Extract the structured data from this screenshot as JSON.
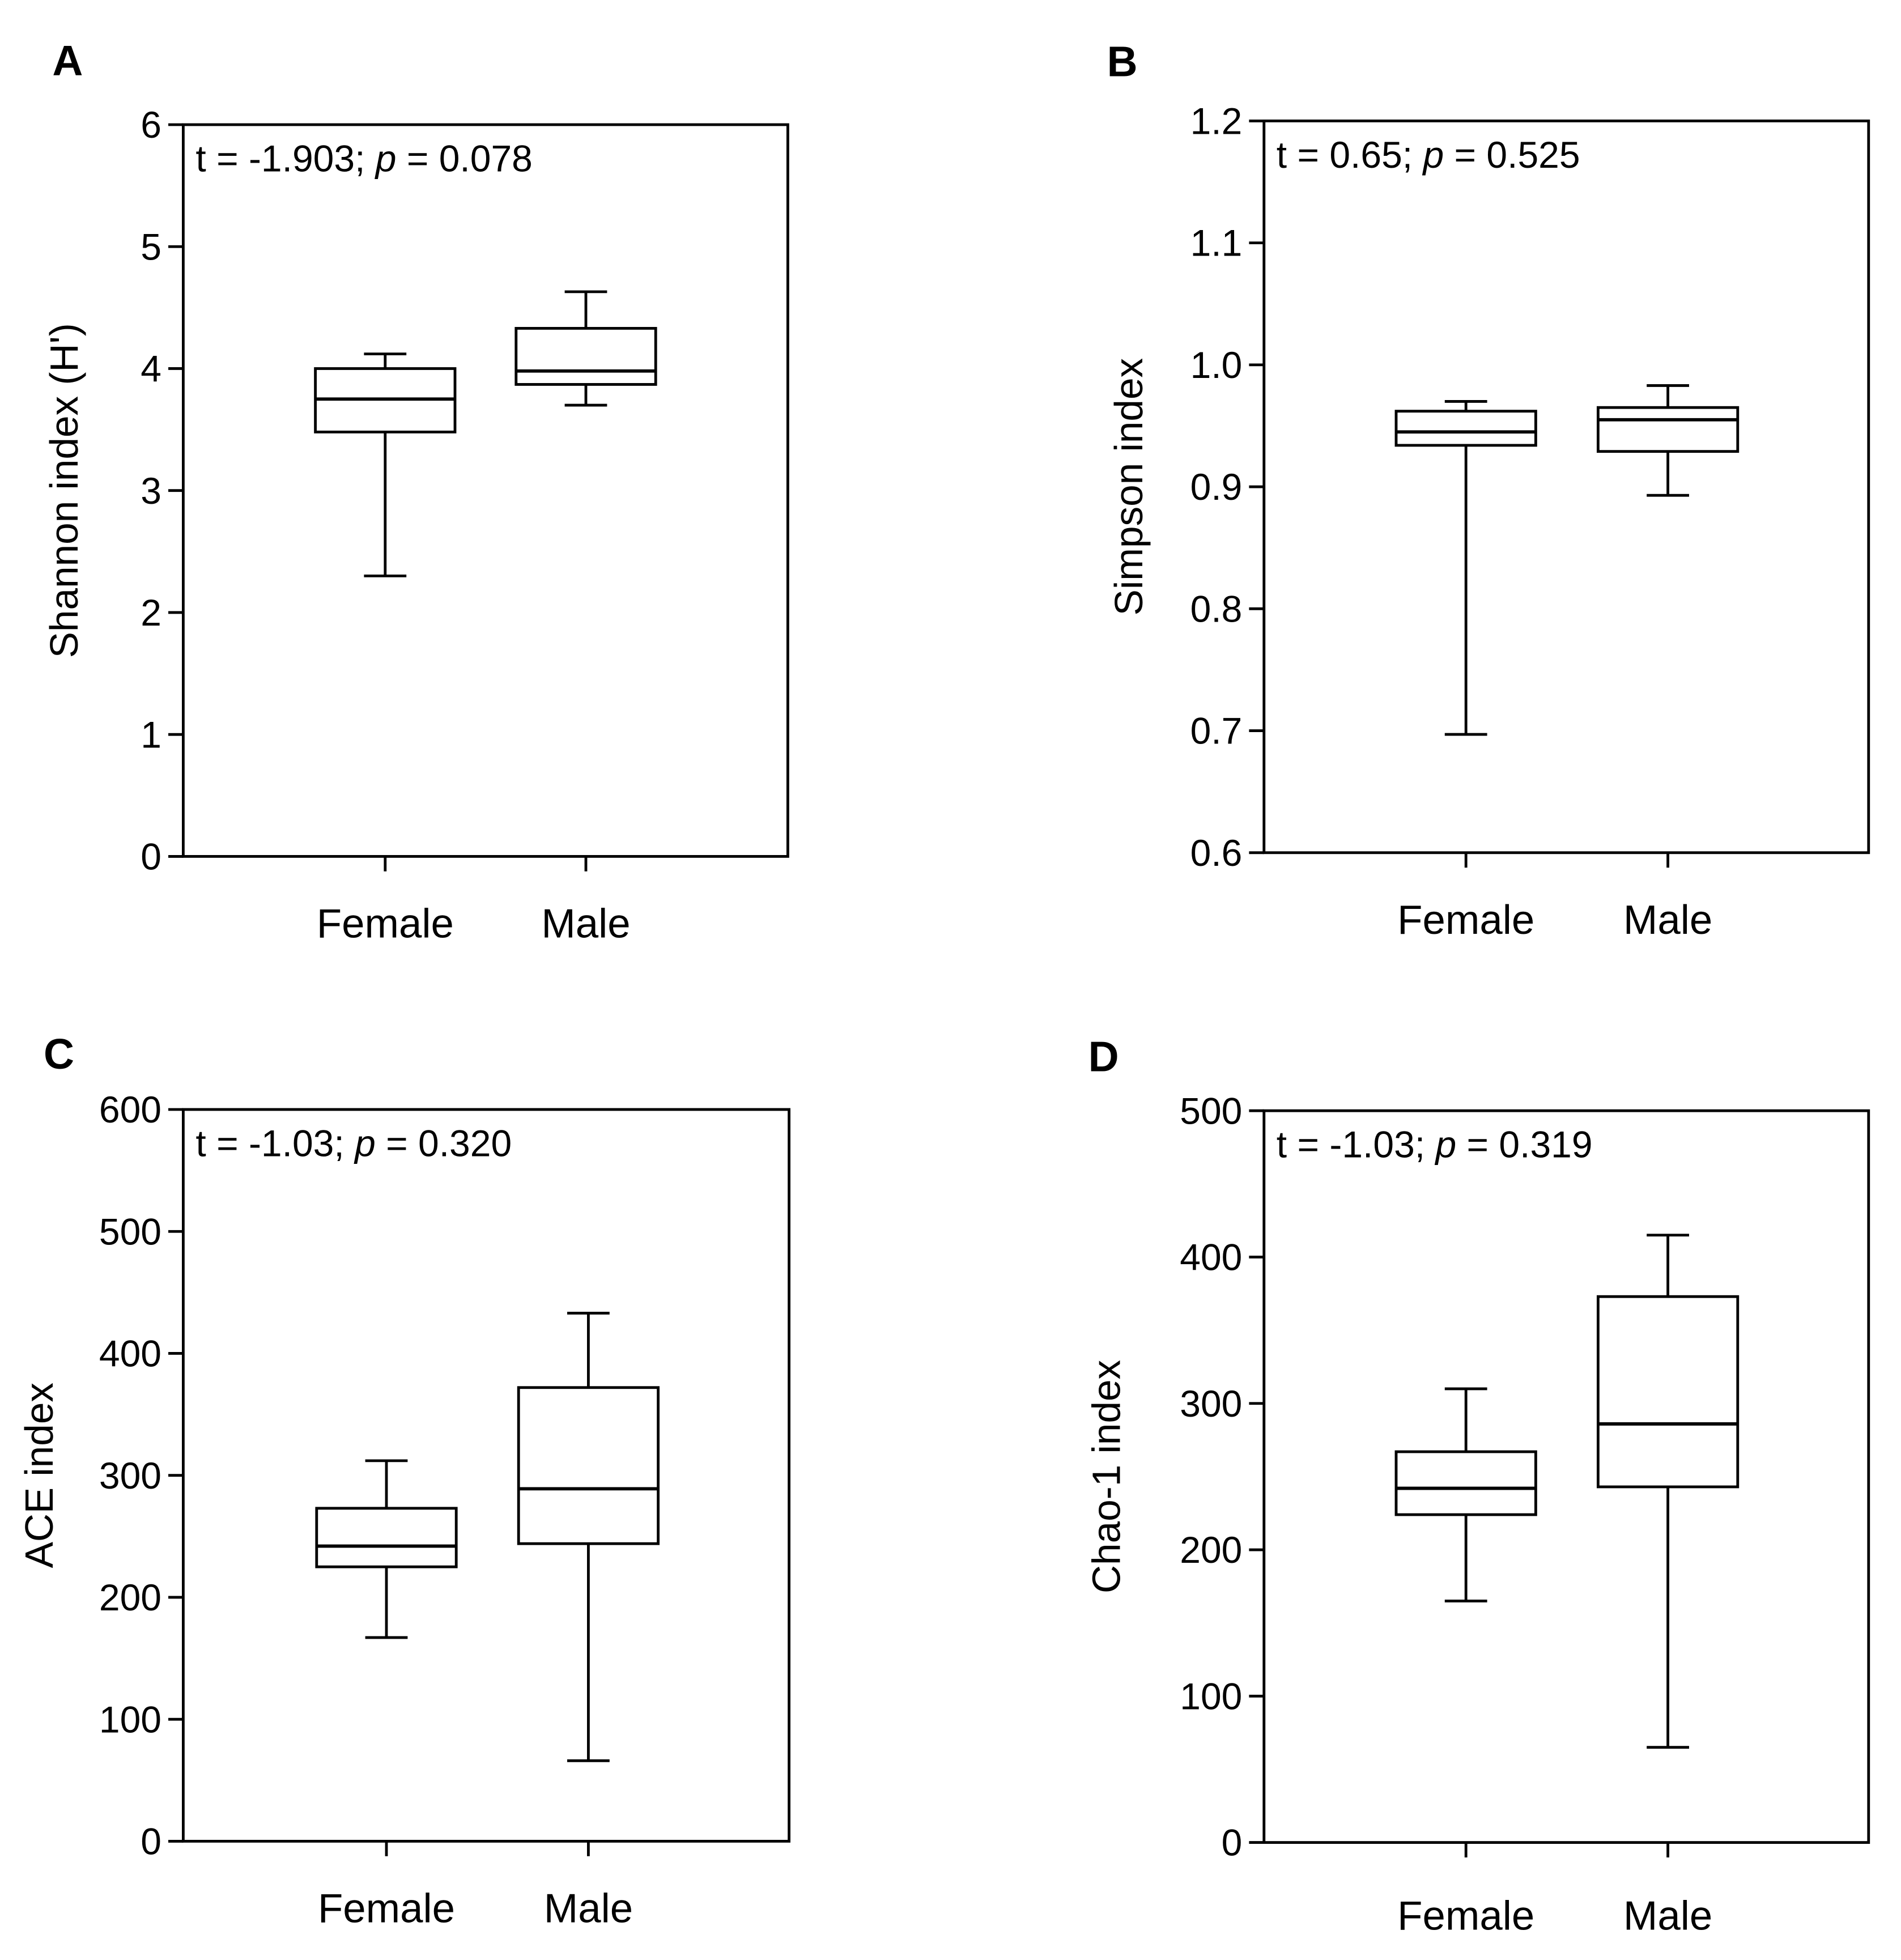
{
  "figure": {
    "colors": {
      "ink": "#000000",
      "background": "#ffffff",
      "box_fill": "#ffffff"
    }
  },
  "chart_data": [
    {
      "panel": "A",
      "type": "box",
      "annotation": {
        "pre": "t = -1.903; ",
        "p": "p",
        "post": " = 0.078"
      },
      "ylabel": "Shannon index (H')",
      "xlabel": "",
      "ylim": [
        0,
        6
      ],
      "yticks": [
        0,
        1,
        2,
        3,
        4,
        5,
        6
      ],
      "ytick_labels": [
        "0",
        "1",
        "2",
        "3",
        "4",
        "5",
        "6"
      ],
      "categories": [
        "Female",
        "Male"
      ],
      "boxes": [
        {
          "name": "Female",
          "min": 2.3,
          "q1": 3.48,
          "median": 3.75,
          "q3": 4.0,
          "max": 4.12
        },
        {
          "name": "Male",
          "min": 3.7,
          "q1": 3.87,
          "median": 3.98,
          "q3": 4.33,
          "max": 4.63
        }
      ]
    },
    {
      "panel": "B",
      "type": "box",
      "annotation": {
        "pre": "t = 0.65; ",
        "p": "p",
        "post": " = 0.525"
      },
      "ylabel": "Simpson index",
      "xlabel": "",
      "ylim": [
        0.6,
        1.2
      ],
      "yticks": [
        0.6,
        0.7,
        0.8,
        0.9,
        1.0,
        1.1,
        1.2
      ],
      "ytick_labels": [
        "0.6",
        "0.7",
        "0.8",
        "0.9",
        "1.0",
        "1.1",
        "1.2"
      ],
      "categories": [
        "Female",
        "Male"
      ],
      "boxes": [
        {
          "name": "Female",
          "min": 0.697,
          "q1": 0.934,
          "median": 0.945,
          "q3": 0.962,
          "max": 0.97
        },
        {
          "name": "Male",
          "min": 0.893,
          "q1": 0.929,
          "median": 0.955,
          "q3": 0.965,
          "max": 0.983
        }
      ]
    },
    {
      "panel": "C",
      "type": "box",
      "annotation": {
        "pre": "t = -1.03; ",
        "p": "p",
        "post": " = 0.320"
      },
      "ylabel": "ACE index",
      "xlabel": "",
      "ylim": [
        0,
        600
      ],
      "yticks": [
        0,
        100,
        200,
        300,
        400,
        500,
        600
      ],
      "ytick_labels": [
        "0",
        "100",
        "200",
        "300",
        "400",
        "500",
        "600"
      ],
      "categories": [
        "Female",
        "Male"
      ],
      "boxes": [
        {
          "name": "Female",
          "min": 167,
          "q1": 225,
          "median": 242,
          "q3": 273,
          "max": 312
        },
        {
          "name": "Male",
          "min": 66,
          "q1": 244,
          "median": 289,
          "q3": 372,
          "max": 433
        }
      ]
    },
    {
      "panel": "D",
      "type": "box",
      "annotation": {
        "pre": "t = -1.03; ",
        "p": "p",
        "post": " = 0.319"
      },
      "ylabel": "Chao-1 index",
      "xlabel": "",
      "ylim": [
        0,
        500
      ],
      "yticks": [
        0,
        100,
        200,
        300,
        400,
        500
      ],
      "ytick_labels": [
        "0",
        "100",
        "200",
        "300",
        "400",
        "500"
      ],
      "categories": [
        "Female",
        "Male"
      ],
      "boxes": [
        {
          "name": "Female",
          "min": 165,
          "q1": 224,
          "median": 242,
          "q3": 267,
          "max": 310
        },
        {
          "name": "Male",
          "min": 65,
          "q1": 243,
          "median": 286,
          "q3": 373,
          "max": 415
        }
      ]
    }
  ]
}
